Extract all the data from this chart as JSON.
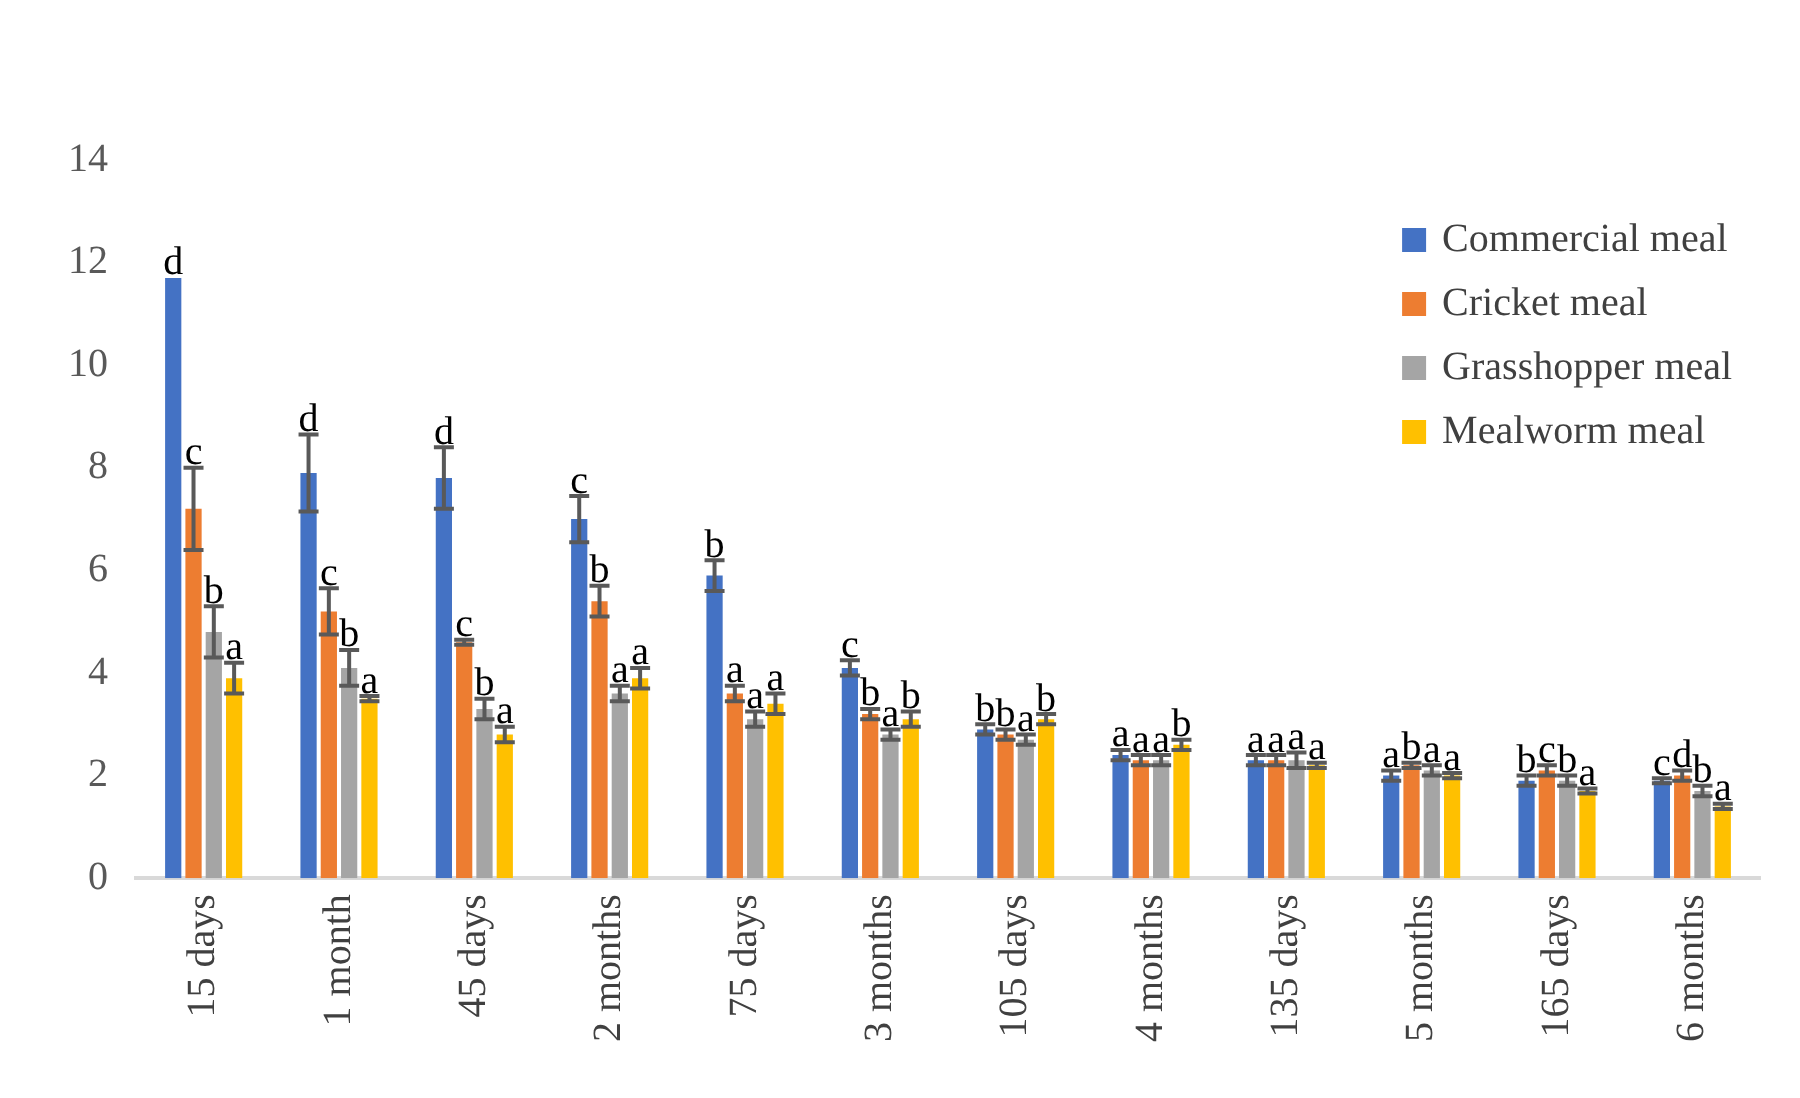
{
  "chart_data": {
    "type": "bar",
    "categories": [
      "15 days",
      "1 month",
      "45 days",
      "2 months",
      "75 days",
      "3 months",
      "105 days",
      "4 months",
      "135 days",
      "5 months",
      "165 days",
      "6 months"
    ],
    "ylim": [
      0,
      14
    ],
    "yticks": [
      0,
      2,
      4,
      6,
      8,
      10,
      12,
      14
    ],
    "grid": false,
    "legend": "top right",
    "series": [
      {
        "name": "Commercial meal",
        "color": "#4472c4",
        "values": [
          11.7,
          7.9,
          7.8,
          7.0,
          5.9,
          4.1,
          2.9,
          2.4,
          2.3,
          2.0,
          1.9,
          1.9
        ],
        "errors": [
          null,
          0.75,
          0.6,
          0.45,
          0.3,
          0.15,
          0.1,
          0.1,
          0.1,
          0.1,
          0.1,
          0.05
        ],
        "value_labels": [
          "d",
          "d",
          "d",
          "c",
          "b",
          "c",
          "b",
          "a",
          "a",
          "a",
          "b",
          "c"
        ]
      },
      {
        "name": "Cricket meal",
        "color": "#ed7d31",
        "values": [
          7.2,
          5.2,
          4.6,
          5.4,
          3.6,
          3.2,
          2.8,
          2.3,
          2.3,
          2.2,
          2.1,
          2.0
        ],
        "errors": [
          0.8,
          0.45,
          0.05,
          0.3,
          0.15,
          0.1,
          0.1,
          0.1,
          0.1,
          0.05,
          0.1,
          0.1
        ],
        "value_labels": [
          "c",
          "c",
          "c",
          "b",
          "a",
          "b",
          "b",
          "a",
          "a",
          "b",
          "c",
          "d"
        ]
      },
      {
        "name": "Grasshopper meal",
        "color": "#a5a5a5",
        "values": [
          4.8,
          4.1,
          3.3,
          3.6,
          3.1,
          2.8,
          2.7,
          2.3,
          2.3,
          2.1,
          1.9,
          1.7
        ],
        "errors": [
          0.5,
          0.35,
          0.2,
          0.15,
          0.15,
          0.1,
          0.1,
          0.1,
          0.15,
          0.1,
          0.1,
          0.1
        ],
        "value_labels": [
          "b",
          "b",
          "b",
          "a",
          "a",
          "a",
          "a",
          "a",
          "a",
          "a",
          "b",
          "b"
        ]
      },
      {
        "name": "Mealworm meal",
        "color": "#ffc000",
        "values": [
          3.9,
          3.5,
          2.8,
          3.9,
          3.4,
          3.1,
          3.1,
          2.6,
          2.2,
          2.0,
          1.7,
          1.4
        ],
        "errors": [
          0.3,
          0.05,
          0.15,
          0.2,
          0.2,
          0.15,
          0.1,
          0.1,
          0.05,
          0.05,
          0.05,
          0.05
        ],
        "value_labels": [
          "a",
          "a",
          "a",
          "a",
          "a",
          "b",
          "b",
          "b",
          "a",
          "a",
          "a",
          "a"
        ]
      }
    ]
  }
}
